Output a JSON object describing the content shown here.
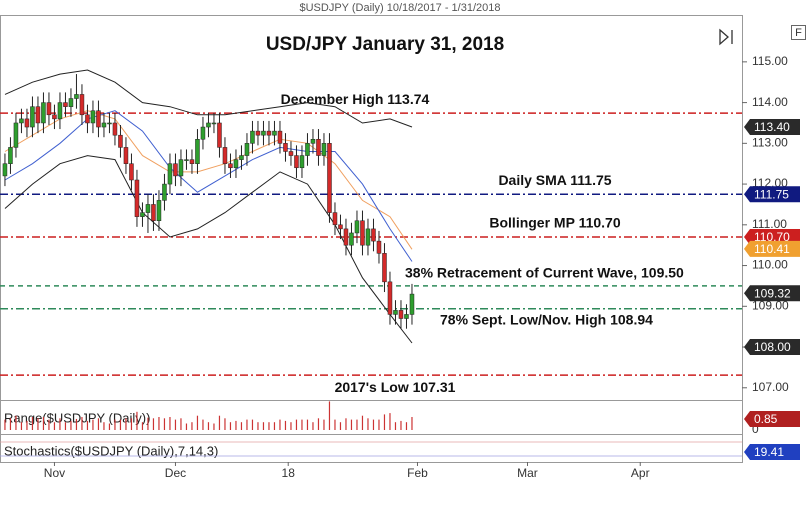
{
  "chart_data": {
    "type": "candlestick",
    "header": "$USDJPY (Daily)  10/18/2017 - 1/31/2018",
    "title": "USD/JPY January 31, 2018",
    "corner_button": "F",
    "open": [
      112.2,
      112.5,
      112.9,
      113.5,
      113.6,
      113.4,
      113.9,
      113.5,
      114.0,
      113.7,
      113.6,
      114.0,
      113.9,
      114.1,
      114.2,
      113.7,
      113.5,
      113.8,
      113.4,
      113.5,
      113.5,
      113.2,
      112.9,
      112.5,
      112.1,
      111.2,
      111.3,
      111.5,
      111.1,
      111.6,
      112.0,
      112.5,
      112.2,
      112.6,
      112.6,
      112.5,
      113.1,
      113.4,
      113.5,
      113.5,
      112.9,
      112.5,
      112.4,
      112.6,
      112.7,
      113.0,
      113.3,
      113.2,
      113.3,
      113.2,
      113.3,
      113.0,
      112.8,
      112.7,
      112.4,
      112.7,
      113.0,
      113.1,
      112.7,
      113.0,
      111.3,
      111.0,
      110.9,
      110.5,
      110.8,
      111.1,
      110.5,
      110.9,
      110.6,
      110.3,
      109.6,
      108.8,
      108.9,
      108.7,
      108.8
    ],
    "high": [
      112.75,
      113.15,
      113.75,
      113.85,
      113.85,
      114.15,
      114.15,
      114.25,
      114.25,
      113.95,
      114.25,
      114.25,
      114.35,
      114.7,
      114.45,
      113.95,
      114.05,
      114.05,
      113.75,
      113.75,
      113.75,
      113.45,
      113.15,
      112.75,
      112.35,
      111.55,
      111.75,
      111.75,
      111.85,
      112.25,
      112.75,
      112.75,
      112.85,
      112.85,
      112.85,
      113.35,
      113.65,
      113.75,
      113.75,
      113.75,
      113.15,
      112.75,
      112.85,
      112.95,
      113.25,
      113.55,
      113.55,
      113.55,
      113.55,
      113.55,
      113.55,
      113.25,
      113.05,
      112.95,
      112.95,
      113.25,
      113.35,
      113.35,
      113.25,
      113.25,
      111.55,
      111.25,
      111.15,
      111.05,
      111.35,
      111.35,
      111.15,
      111.15,
      110.85,
      110.55,
      109.85,
      109.15,
      109.15,
      109.05,
      109.55
    ],
    "low": [
      111.95,
      112.25,
      112.65,
      113.25,
      113.15,
      113.15,
      113.25,
      113.25,
      113.45,
      113.35,
      113.35,
      113.65,
      113.65,
      113.85,
      113.45,
      113.25,
      113.25,
      113.15,
      113.15,
      113.25,
      112.95,
      112.65,
      112.25,
      111.85,
      110.95,
      110.95,
      110.8,
      110.85,
      110.85,
      111.35,
      111.75,
      111.95,
      111.95,
      112.35,
      112.25,
      112.25,
      112.85,
      113.15,
      113.25,
      112.65,
      112.25,
      112.15,
      112.15,
      112.35,
      112.45,
      112.75,
      112.95,
      112.95,
      112.95,
      112.95,
      112.75,
      112.55,
      112.45,
      112.15,
      112.15,
      112.45,
      112.75,
      112.45,
      112.45,
      111.05,
      110.75,
      110.65,
      110.25,
      110.25,
      110.55,
      110.25,
      110.25,
      110.35,
      110.05,
      109.35,
      108.55,
      108.55,
      108.45,
      108.45,
      108.55
    ],
    "close": [
      112.5,
      112.9,
      113.5,
      113.6,
      113.4,
      113.9,
      113.5,
      114.0,
      113.7,
      113.6,
      114.0,
      113.9,
      114.1,
      114.2,
      113.7,
      113.5,
      113.8,
      113.4,
      113.5,
      113.5,
      113.2,
      112.9,
      112.5,
      112.1,
      111.2,
      111.3,
      111.5,
      111.1,
      111.6,
      112.0,
      112.5,
      112.2,
      112.6,
      112.6,
      112.5,
      113.1,
      113.4,
      113.5,
      113.5,
      112.9,
      112.5,
      112.4,
      112.6,
      112.7,
      113.0,
      113.3,
      113.2,
      113.3,
      113.2,
      113.3,
      113.0,
      112.8,
      112.7,
      112.4,
      112.7,
      113.0,
      113.1,
      112.7,
      113.0,
      111.3,
      111.0,
      110.9,
      110.5,
      110.8,
      111.1,
      110.5,
      110.9,
      110.6,
      110.3,
      109.6,
      108.8,
      108.9,
      108.7,
      108.8,
      109.3
    ],
    "up_color": "#2e9e2e",
    "down_color": "#d42a2a",
    "band_x": [
      0,
      5,
      10,
      15,
      20,
      25,
      30,
      35,
      40,
      45,
      50,
      55,
      60,
      65,
      70,
      74
    ],
    "lines": [
      {
        "color": "#222222",
        "values": [
          114.2,
          114.5,
          114.7,
          114.8,
          114.5,
          114.0,
          113.9,
          113.7,
          113.7,
          113.8,
          113.9,
          114.0,
          113.9,
          113.5,
          113.6,
          113.4
        ]
      },
      {
        "color": "#f0a060",
        "values": [
          112.8,
          113.2,
          113.6,
          113.8,
          113.6,
          112.7,
          112.3,
          112.3,
          112.5,
          112.8,
          113.1,
          113.0,
          112.5,
          111.6,
          111.2,
          110.4
        ]
      },
      {
        "color": "#222222",
        "values": [
          111.4,
          112.0,
          112.5,
          112.7,
          112.6,
          111.3,
          110.7,
          110.9,
          111.3,
          111.8,
          112.3,
          112.0,
          111.0,
          109.7,
          108.8,
          108.1
        ]
      },
      {
        "color": "#4060d0",
        "values": [
          112.1,
          112.5,
          113.0,
          113.6,
          113.8,
          113.3,
          112.4,
          111.8,
          112.2,
          112.6,
          112.9,
          112.8,
          112.8,
          112.0,
          110.9,
          110.1
        ]
      }
    ],
    "levels": [
      {
        "value": 113.74,
        "color": "#cc1f1f",
        "dash": "8 3 2 3",
        "label": "December High 113.74"
      },
      {
        "value": 111.75,
        "color": "#101a80",
        "dash": "8 3 2 3",
        "label": "Daily SMA 111.75"
      },
      {
        "value": 110.7,
        "color": "#cc1f1f",
        "dash": "8 3 2 3",
        "label": "Bollinger MP 110.70"
      },
      {
        "value": 109.5,
        "color": "#2e8a5a",
        "dash": "5 4",
        "label": "38% Retracement of Current Wave, 109.50"
      },
      {
        "value": 108.94,
        "color": "#2e8a5a",
        "dash": "8 3 2 3",
        "label": "78% Sept. Low/Nov. High 108.94"
      },
      {
        "value": 107.31,
        "color": "#cc1f1f",
        "dash": "8 3 2 3",
        "label": "2017's Low 107.31"
      }
    ],
    "price_tags": [
      {
        "value": 113.4,
        "label": "113.40",
        "color": "#2a2a2a"
      },
      {
        "value": 111.75,
        "label": "111.75",
        "color": "#101a80"
      },
      {
        "value": 110.7,
        "label": "110.70",
        "color": "#cc1f1f"
      },
      {
        "value": 110.41,
        "label": "110.41",
        "color": "#f0a030"
      },
      {
        "value": 109.32,
        "label": "109.32",
        "color": "#2a2a2a"
      },
      {
        "value": 108.0,
        "label": "108.00",
        "color": "#2a2a2a"
      }
    ],
    "ylim": [
      106.7,
      116.15
    ],
    "yticks": [
      {
        "value": 107,
        "label": "107.00"
      },
      {
        "value": 108,
        "label": "108.00"
      },
      {
        "value": 109,
        "label": "109.00"
      },
      {
        "value": 110,
        "label": "110.00"
      },
      {
        "value": 111,
        "label": "111.00"
      },
      {
        "value": 112,
        "label": "112.00"
      },
      {
        "value": 113,
        "label": "113.00"
      },
      {
        "value": 114,
        "label": "114.00"
      },
      {
        "value": 115,
        "label": "115.00"
      }
    ],
    "xlim": [
      -0.9,
      134
    ],
    "xticks": [
      {
        "value": 9,
        "label": "Nov"
      },
      {
        "value": 31,
        "label": "Dec"
      },
      {
        "value": 51.5,
        "label": "18"
      },
      {
        "value": 75,
        "label": "Feb"
      },
      {
        "value": 95,
        "label": "Mar"
      },
      {
        "value": 115.5,
        "label": "Apr"
      }
    ],
    "range_panel": {
      "label": "Range($USDJPY (Daily))",
      "ylim": [
        0,
        2
      ],
      "yticks": [
        0
      ],
      "color": "#cc3333",
      "tag": {
        "value": 0.85,
        "label": "0.85",
        "color": "#b02020"
      }
    },
    "stoch_panel": {
      "label": "Stochastics($USDJPY (Daily),7,14,3)",
      "tag": {
        "value": 19.41,
        "label": "19.41",
        "color": "#2040c0"
      }
    }
  }
}
